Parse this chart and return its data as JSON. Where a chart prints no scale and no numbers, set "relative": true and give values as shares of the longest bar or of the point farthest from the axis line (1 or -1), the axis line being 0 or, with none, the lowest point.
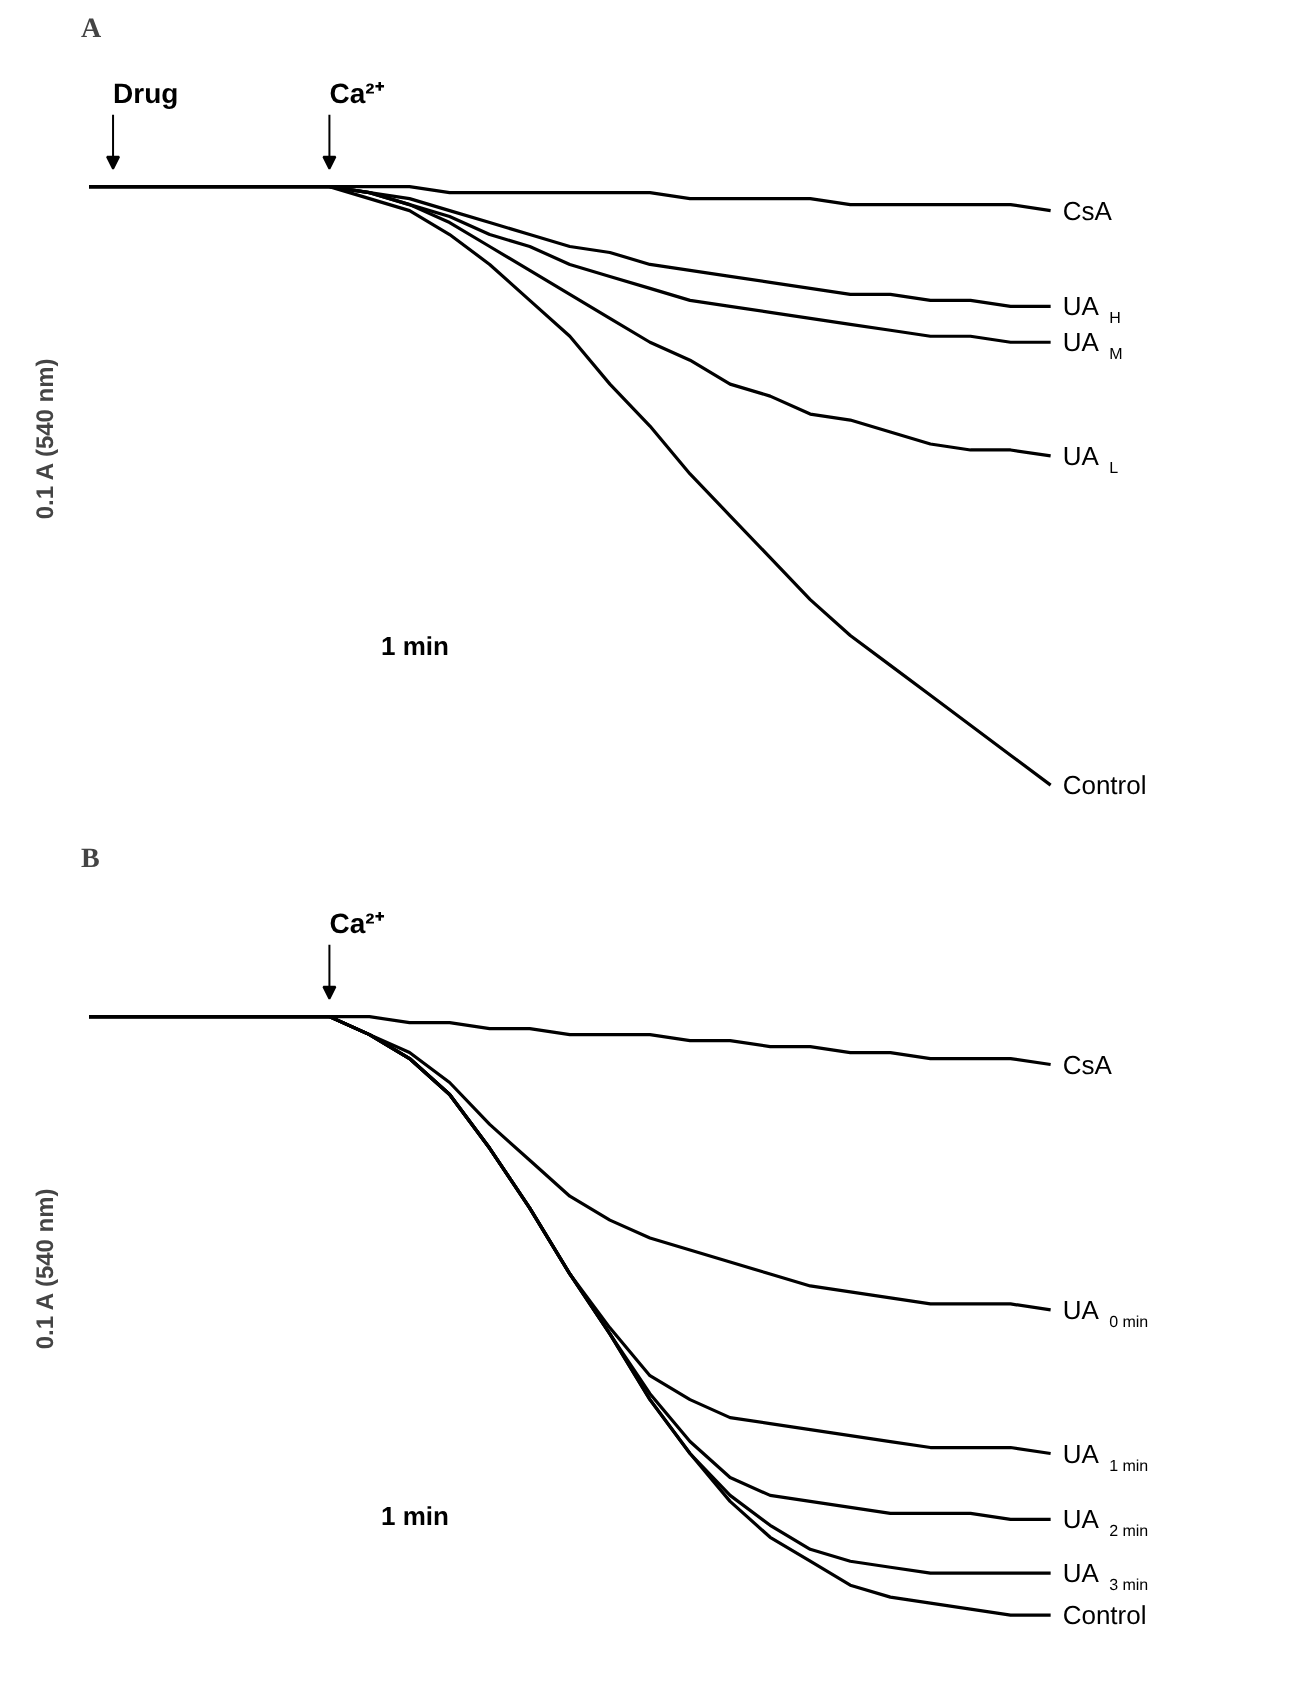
{
  "chart_data": [
    {
      "type": "line",
      "title": "A",
      "relative": true,
      "ylabel": "0.1 A (540 nm)",
      "annotations": [
        "Drug",
        "Ca²⁺",
        "1 min"
      ],
      "categories": [
        null,
        null,
        null,
        null,
        null,
        null,
        null,
        null,
        null,
        null,
        null,
        null,
        null,
        null,
        null,
        null,
        null,
        null,
        null,
        null,
        null,
        null,
        null,
        null,
        null
      ],
      "grid": false,
      "series": [
        {
          "name": "CsA",
          "color": "#000000",
          "values": [
            1,
            1,
            1,
            1,
            1,
            1,
            1,
            1.0,
            1.0,
            0.99,
            0.99,
            0.99,
            0.99,
            0.99,
            0.99,
            0.98,
            0.98,
            0.98,
            0.98,
            0.97,
            0.97,
            0.97,
            0.97,
            0.97,
            0.96
          ]
        },
        {
          "name": "UA$_{H}$",
          "color": "#000000",
          "values": [
            1,
            1,
            1,
            1,
            1,
            1,
            1,
            0.99,
            0.98,
            0.96,
            0.94,
            0.92,
            0.9,
            0.89,
            0.87,
            0.86,
            0.85,
            0.84,
            0.83,
            0.82,
            0.82,
            0.81,
            0.81,
            0.8,
            0.8
          ]
        },
        {
          "name": "UA$_{M}$",
          "color": "#000000",
          "values": [
            1,
            1,
            1,
            1,
            1,
            1,
            1,
            0.99,
            0.97,
            0.95,
            0.92,
            0.9,
            0.87,
            0.85,
            0.83,
            0.81,
            0.8,
            0.79,
            0.78,
            0.77,
            0.76,
            0.75,
            0.75,
            0.74,
            0.74
          ]
        },
        {
          "name": "UA$_{L}$",
          "color": "#000000",
          "values": [
            1,
            1,
            1,
            1,
            1,
            1,
            1,
            0.99,
            0.97,
            0.94,
            0.9,
            0.86,
            0.82,
            0.78,
            0.74,
            0.71,
            0.67,
            0.65,
            0.62,
            0.61,
            0.59,
            0.57,
            0.56,
            0.56,
            0.55
          ]
        },
        {
          "name": "Control",
          "color": "#000000",
          "values": [
            1,
            1,
            1,
            1,
            1,
            1,
            1,
            0.98,
            0.96,
            0.92,
            0.87,
            0.81,
            0.75,
            0.67,
            0.6,
            0.52,
            0.45,
            0.38,
            0.31,
            0.25,
            0.2,
            0.15,
            0.1,
            0.05,
            0
          ]
        }
      ]
    },
    {
      "type": "line",
      "title": "B",
      "relative": true,
      "ylabel": "0.1 A (540 nm)",
      "annotations": [
        "Ca²⁺",
        "1 min"
      ],
      "categories": [
        null,
        null,
        null,
        null,
        null,
        null,
        null,
        null,
        null,
        null,
        null,
        null,
        null,
        null,
        null,
        null,
        null,
        null,
        null,
        null,
        null,
        null,
        null,
        null,
        null
      ],
      "grid": false,
      "series": [
        {
          "name": "CsA",
          "color": "#000000",
          "values": [
            1,
            1,
            1,
            1,
            1,
            1,
            1,
            1.0,
            0.99,
            0.99,
            0.98,
            0.98,
            0.97,
            0.97,
            0.97,
            0.96,
            0.96,
            0.95,
            0.95,
            0.94,
            0.94,
            0.93,
            0.93,
            0.93,
            0.92
          ]
        },
        {
          "name": "UA$_{0 min}$",
          "color": "#000000",
          "values": [
            1,
            1,
            1,
            1,
            1,
            1,
            1,
            0.97,
            0.94,
            0.89,
            0.82,
            0.76,
            0.7,
            0.66,
            0.63,
            0.61,
            0.59,
            0.57,
            0.55,
            0.54,
            0.53,
            0.52,
            0.52,
            0.52,
            0.51
          ]
        },
        {
          "name": "UA$_{1 min}$",
          "color": "#000000",
          "values": [
            1,
            1,
            1,
            1,
            1,
            1,
            1,
            0.97,
            0.93,
            0.87,
            0.78,
            0.68,
            0.57,
            0.48,
            0.4,
            0.36,
            0.33,
            0.32,
            0.31,
            0.3,
            0.29,
            0.28,
            0.28,
            0.28,
            0.27
          ]
        },
        {
          "name": "UA$_{2 min}$",
          "color": "#000000",
          "values": [
            1,
            1,
            1,
            1,
            1,
            1,
            1,
            0.97,
            0.93,
            0.87,
            0.78,
            0.68,
            0.57,
            0.47,
            0.37,
            0.29,
            0.23,
            0.2,
            0.19,
            0.18,
            0.17,
            0.17,
            0.17,
            0.16,
            0.16
          ]
        },
        {
          "name": "UA$_{3 min}$",
          "color": "#000000",
          "values": [
            1,
            1,
            1,
            1,
            1,
            1,
            1,
            0.97,
            0.93,
            0.87,
            0.78,
            0.68,
            0.57,
            0.47,
            0.36,
            0.27,
            0.2,
            0.15,
            0.11,
            0.09,
            0.08,
            0.07,
            0.07,
            0.07,
            0.07
          ]
        },
        {
          "name": "Control",
          "color": "#000000",
          "values": [
            1,
            1,
            1,
            1,
            1,
            1,
            1,
            0.97,
            0.93,
            0.87,
            0.78,
            0.68,
            0.57,
            0.47,
            0.36,
            0.27,
            0.19,
            0.13,
            0.09,
            0.05,
            0.03,
            0.02,
            0.01,
            0.0,
            0
          ]
        }
      ]
    }
  ]
}
